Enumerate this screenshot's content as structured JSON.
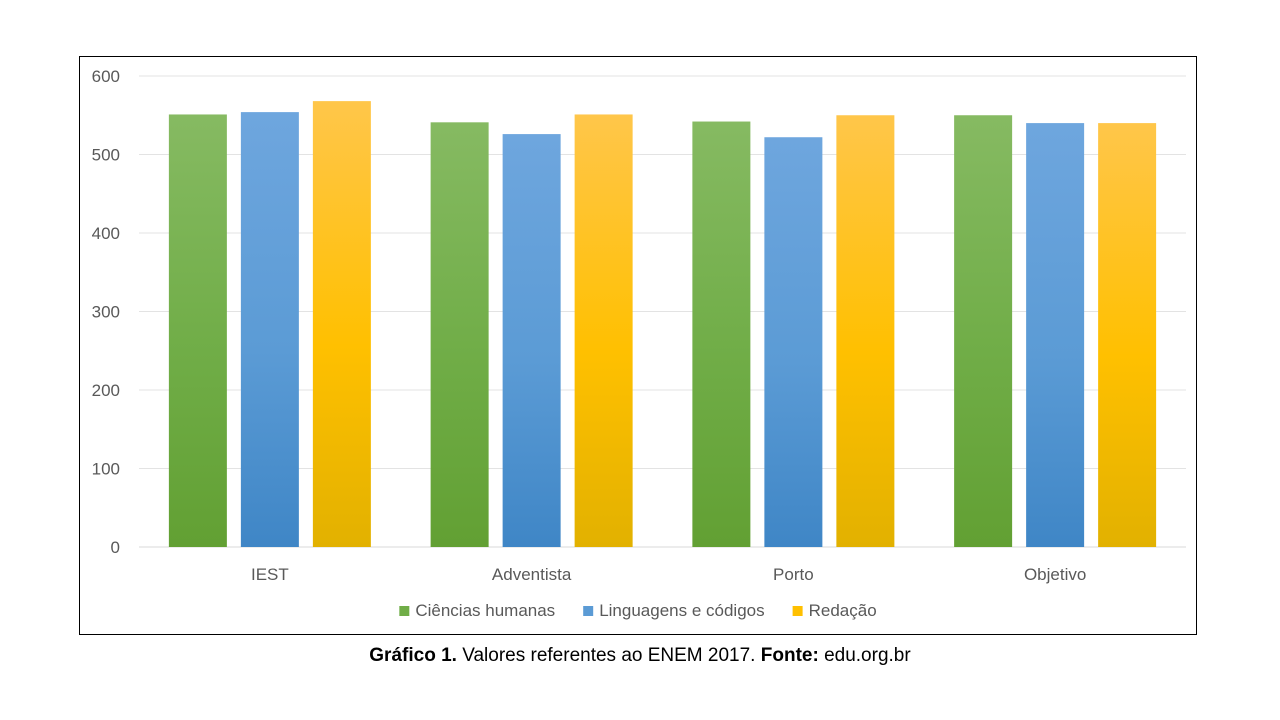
{
  "caption": {
    "label": "Gráfico 1.",
    "text": " Valores referentes ao ENEM 2017. ",
    "source_label": "Fonte:",
    "source": " edu.org.br"
  },
  "chart_data": {
    "type": "bar",
    "categories": [
      "IEST",
      "Adventista",
      "Porto",
      "Objetivo"
    ],
    "series": [
      {
        "name": "Ciências humanas",
        "values": [
          551,
          541,
          542,
          550
        ],
        "color": "#70AD47",
        "color_light": "#86BA62",
        "color_dark": "#62A033"
      },
      {
        "name": "Linguagens e códigos",
        "values": [
          554,
          526,
          522,
          540
        ],
        "color": "#5B9BD5",
        "color_light": "#6EA6DE",
        "color_dark": "#3F86C6"
      },
      {
        "name": "Redação",
        "values": [
          568,
          551,
          550,
          540
        ],
        "color": "#FFC000",
        "color_light": "#FFC64A",
        "color_dark": "#E2B100"
      }
    ],
    "yticks": [
      0,
      100,
      200,
      300,
      400,
      500,
      600
    ],
    "ylim": [
      0,
      600
    ],
    "grid": true,
    "legend_position": "bottom",
    "title": "",
    "xlabel": "",
    "ylabel": ""
  }
}
